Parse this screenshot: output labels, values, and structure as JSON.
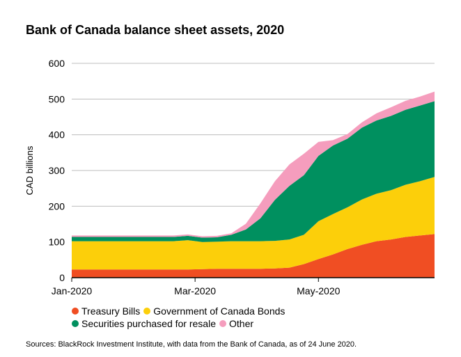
{
  "chart_data": {
    "type": "area",
    "stacked": true,
    "title": "Bank of Canada balance sheet assets, 2020",
    "ylabel": "CAD billions",
    "xlabel": "",
    "ylim": [
      0,
      600
    ],
    "yticks": [
      0,
      100,
      200,
      300,
      400,
      500,
      600
    ],
    "grid": "horizontal",
    "legend_position": "bottom",
    "x_tick_labels": [
      {
        "label": "Jan-2020",
        "week": 0
      },
      {
        "label": "Mar-2020",
        "week": 8.5
      },
      {
        "label": "May-2020",
        "week": 17
      }
    ],
    "x_unit": "weeks from start of January 2020 (approx. weekly observations)",
    "x": [
      0,
      1,
      2,
      3,
      4,
      5,
      6,
      7,
      8,
      9,
      10,
      11,
      12,
      13,
      14,
      15,
      16,
      17,
      18,
      19,
      20,
      21,
      22,
      23,
      24,
      25
    ],
    "series": [
      {
        "name": "Treasury Bills",
        "color": "#f04e23",
        "values": [
          23,
          23,
          23,
          23,
          23,
          23,
          23,
          23,
          23,
          24,
          25,
          25,
          25,
          25,
          26,
          28,
          38,
          52,
          65,
          80,
          92,
          102,
          107,
          114,
          118,
          122
        ]
      },
      {
        "name": "Government of Canada Bonds",
        "color": "#fccf0a",
        "values": [
          79,
          79,
          79,
          79,
          79,
          79,
          79,
          79,
          82,
          76,
          76,
          77,
          77,
          77,
          77,
          79,
          82,
          106,
          113,
          117,
          127,
          133,
          138,
          146,
          152,
          160
        ]
      },
      {
        "name": "Securities purchased for resale",
        "color": "#00905f",
        "values": [
          12,
          12,
          12,
          12,
          12,
          12,
          12,
          12,
          12,
          12,
          12,
          18,
          33,
          64,
          115,
          150,
          167,
          183,
          192,
          192,
          201,
          205,
          208,
          210,
          212,
          212
        ]
      },
      {
        "name": "Other",
        "color": "#f59dbd",
        "values": [
          4,
          4,
          4,
          4,
          4,
          4,
          4,
          4,
          4,
          4,
          4,
          4,
          16,
          42,
          52,
          60,
          60,
          39,
          15,
          13,
          15,
          20,
          24,
          25,
          25,
          27
        ]
      }
    ],
    "source": "Sources: BlackRock Investment Institute, with data from the Bank of Canada, as of 24 June 2020."
  }
}
